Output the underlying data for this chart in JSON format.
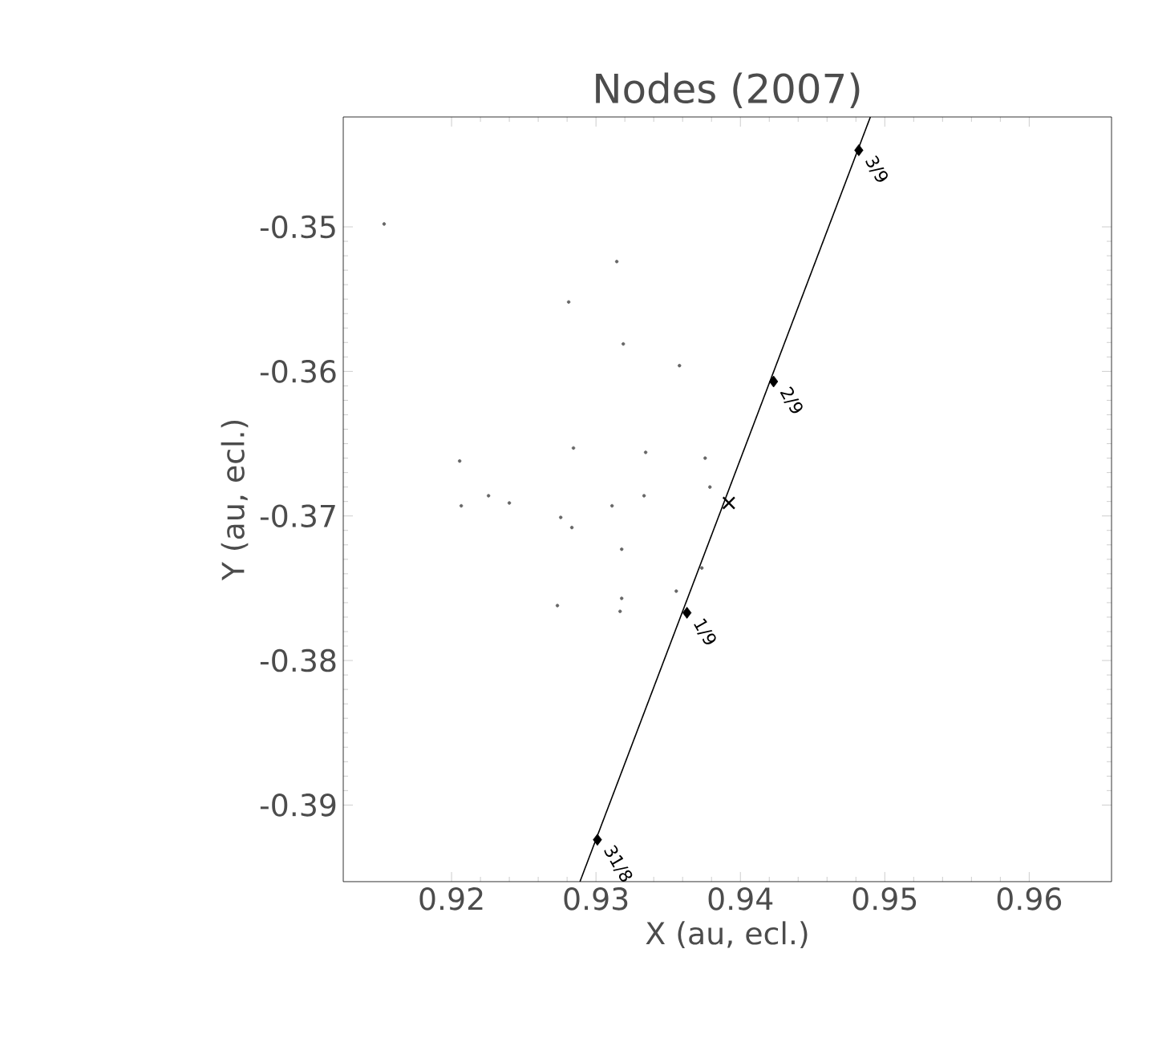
{
  "chart_data": {
    "type": "scatter",
    "title": "Nodes (2007)",
    "xlabel": "X (au, ecl.)",
    "ylabel": "Y (au, ecl.)",
    "xlim": [
      0.9125,
      0.9657
    ],
    "ylim": [
      -0.3953,
      -0.3424
    ],
    "xticks": [
      0.92,
      0.93,
      0.94,
      0.95,
      0.96
    ],
    "yticks": [
      -0.39,
      -0.38,
      -0.37,
      -0.36,
      -0.35
    ],
    "grid": false,
    "series": [
      {
        "type": "line",
        "x": [
          0.92889,
          0.949
        ],
        "values": [
          -0.3953,
          -0.3424
        ],
        "color": "#000000",
        "marker": "none"
      },
      {
        "x": [
          0.9301,
          0.9363,
          0.9423,
          0.9482
        ],
        "values": [
          -0.3924,
          -0.3767,
          -0.3607,
          -0.3447
        ],
        "color": "#000000",
        "marker": "diamond"
      },
      {
        "x": [
          0.9392
        ],
        "values": [
          -0.3691
        ],
        "color": "#000000",
        "marker": "cross"
      },
      {
        "x": [
          0.91533,
          0.93144,
          0.92811,
          0.93189,
          0.93578,
          0.93344,
          0.92844,
          0.92056,
          0.93756,
          0.92067,
          0.92256,
          0.924,
          0.92756,
          0.93111,
          0.93333,
          0.93789,
          0.92833,
          0.93178,
          0.93733,
          0.93556,
          0.93178,
          0.93167,
          0.92733
        ],
        "values": [
          -0.3498,
          -0.3524,
          -0.3552,
          -0.3581,
          -0.3596,
          -0.3656,
          -0.3653,
          -0.3662,
          -0.366,
          -0.3693,
          -0.3686,
          -0.3691,
          -0.3701,
          -0.3693,
          -0.3686,
          -0.368,
          -0.3708,
          -0.3723,
          -0.3736,
          -0.3752,
          -0.3757,
          -0.3766,
          -0.3762
        ],
        "color": "#666666",
        "marker": "circle"
      }
    ],
    "annotations": [
      {
        "text": "31/8",
        "x": 0.9301,
        "y": -0.3924
      },
      {
        "text": "1/9",
        "x": 0.9363,
        "y": -0.3767
      },
      {
        "text": "2/9",
        "x": 0.9423,
        "y": -0.3607
      },
      {
        "text": "3/9",
        "x": 0.9482,
        "y": -0.3447
      }
    ]
  }
}
